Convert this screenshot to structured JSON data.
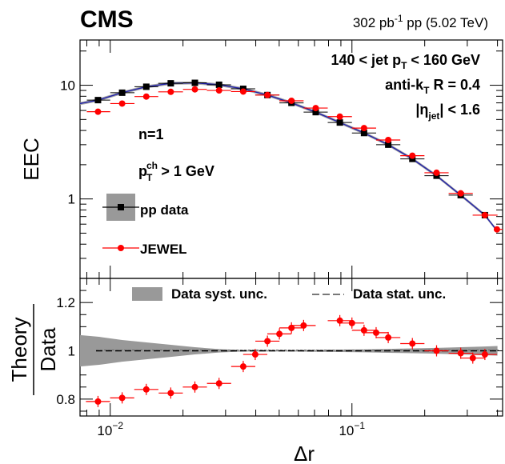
{
  "chart_data": {
    "type": "line",
    "experiment": "CMS",
    "luminosity": "302 pb⁻¹ pp (5.02 TeV)",
    "lumi_parts": {
      "pre": "302 pb",
      "sup": "-1",
      "post": " pp (5.02 TeV)"
    },
    "annotations": {
      "jet_pt": {
        "a": "140 < jet p",
        "sub": "T",
        "b": " < 160 GeV"
      },
      "algo": {
        "a": "anti-k",
        "sub": "T",
        "b": " R = 0.4"
      },
      "eta": {
        "a": "|η",
        "sub": "jet",
        "b": "| < 1.6"
      },
      "n": "n=1",
      "track_pt": {
        "a": "p",
        "sup": "ch",
        "sub": "T",
        "b": " > 1 GeV"
      }
    },
    "x": {
      "label": "Δr",
      "scale": "log",
      "range": [
        0.0075,
        0.42
      ],
      "tick_labels": [
        {
          "base": "10",
          "exp": "−2",
          "value": 0.01
        },
        {
          "base": "10",
          "exp": "−1",
          "value": 0.1
        }
      ],
      "bin_edges": [
        0.008,
        0.01,
        0.0126,
        0.0158,
        0.02,
        0.0251,
        0.0316,
        0.0398,
        0.0501,
        0.0631,
        0.0794,
        0.1,
        0.1259,
        0.1585,
        0.1995,
        0.2512,
        0.3162,
        0.4
      ],
      "bin_centers": [
        0.0089,
        0.0112,
        0.0141,
        0.0178,
        0.0224,
        0.0282,
        0.0355,
        0.0447,
        0.0562,
        0.0708,
        0.0891,
        0.1122,
        0.1413,
        0.1778,
        0.2239,
        0.2818,
        0.3548
      ]
    },
    "top_panel": {
      "ylabel": "EEC",
      "yscale": "log",
      "ylim": [
        0.2,
        25
      ],
      "ytick_labels": [
        {
          "label": "1",
          "value": 1
        },
        {
          "label": "10",
          "value": 10
        }
      ],
      "series": [
        {
          "name": "pp data",
          "values": [
            7.4,
            8.6,
            9.7,
            10.4,
            10.5,
            10.1,
            9.3,
            8.2,
            7.0,
            5.8,
            4.7,
            3.8,
            3.0,
            2.25,
            1.6,
            1.08,
            0.72
          ],
          "line_x": [
            0.0075,
            0.0089,
            0.0112,
            0.0141,
            0.0178,
            0.0224,
            0.0282,
            0.0355,
            0.0447,
            0.0562,
            0.0708,
            0.0891,
            0.1122,
            0.1413,
            0.1778,
            0.2239,
            0.2818,
            0.3548,
            0.4
          ],
          "line_y": [
            6.9,
            7.4,
            8.6,
            9.7,
            10.4,
            10.5,
            10.1,
            9.3,
            8.2,
            7.0,
            5.8,
            4.7,
            3.8,
            3.0,
            2.25,
            1.6,
            1.08,
            0.72,
            0.52
          ],
          "stat_rel_unc": 0.03,
          "marker": "square",
          "color": "#000000",
          "band_color": "#999999",
          "line_color": "#2222aa"
        },
        {
          "name": "JEWEL",
          "values": [
            5.85,
            6.9,
            7.95,
            8.75,
            9.2,
            9.0,
            8.8,
            8.2,
            7.3,
            6.3,
            5.3,
            4.2,
            3.3,
            2.4,
            1.7,
            1.12,
            0.72,
            0.54
          ],
          "x_index": "bin_centers + last point at 0.4",
          "marker": "circle",
          "color": "#ff0000"
        }
      ]
    },
    "ratio_panel": {
      "ylabel": "Theory / Data",
      "ylabel_top": "Theory",
      "ylabel_bottom": "Data",
      "ylim": [
        0.73,
        1.3
      ],
      "ytick_labels": [
        {
          "label": "0.8",
          "value": 0.8
        },
        {
          "label": "1",
          "value": 1.0
        },
        {
          "label": "1.2",
          "value": 1.2
        }
      ],
      "reference_line": 1.0,
      "syst_band_x": [
        0.0075,
        0.009,
        0.0112,
        0.0141,
        0.0178,
        0.0224,
        0.0282,
        0.0355,
        0.0447,
        0.0562,
        0.0708,
        0.0891,
        0.1122,
        0.1413,
        0.1778,
        0.2239,
        0.2818,
        0.3548,
        0.4
      ],
      "syst_band_half_width": [
        0.065,
        0.058,
        0.045,
        0.035,
        0.025,
        0.015,
        0.007,
        0.003,
        0.003,
        0.003,
        0.004,
        0.005,
        0.006,
        0.008,
        0.01,
        0.012,
        0.015,
        0.018,
        0.02
      ],
      "stat_line_y": [
        1.0,
        1.0,
        1.0,
        1.0,
        1.0,
        1.0,
        1.0,
        1.0,
        1.0,
        1.0,
        1.0,
        1.0,
        1.0,
        1.0,
        1.0,
        1.0,
        1.0,
        1.0,
        1.0
      ],
      "jewel_ratio": [
        0.79,
        0.805,
        0.84,
        0.825,
        0.85,
        0.865,
        0.935,
        0.985,
        1.04,
        1.07,
        1.095,
        1.105,
        1.125,
        1.115,
        1.085,
        1.075,
        1.055,
        1.03,
        1.0,
        0.99,
        0.97,
        0.985
      ],
      "jewel_ratio_x": [
        0.0089,
        0.0112,
        0.0141,
        0.0178,
        0.0224,
        0.0282,
        0.0355,
        0.0398,
        0.0447,
        0.0501,
        0.0562,
        0.0631,
        0.0891,
        0.1,
        0.1122,
        0.1259,
        0.1413,
        0.1778,
        0.2239,
        0.2818,
        0.3162,
        0.3548
      ],
      "legend": [
        {
          "name": "Data syst. unc.",
          "style": "band",
          "color": "#999999"
        },
        {
          "name": "Data stat. unc.",
          "style": "dashed-line",
          "color": "#666666"
        }
      ]
    },
    "colors": {
      "data": "#000000",
      "jewel": "#ff0000",
      "band": "#999999",
      "data_line": "#2222aa"
    }
  }
}
